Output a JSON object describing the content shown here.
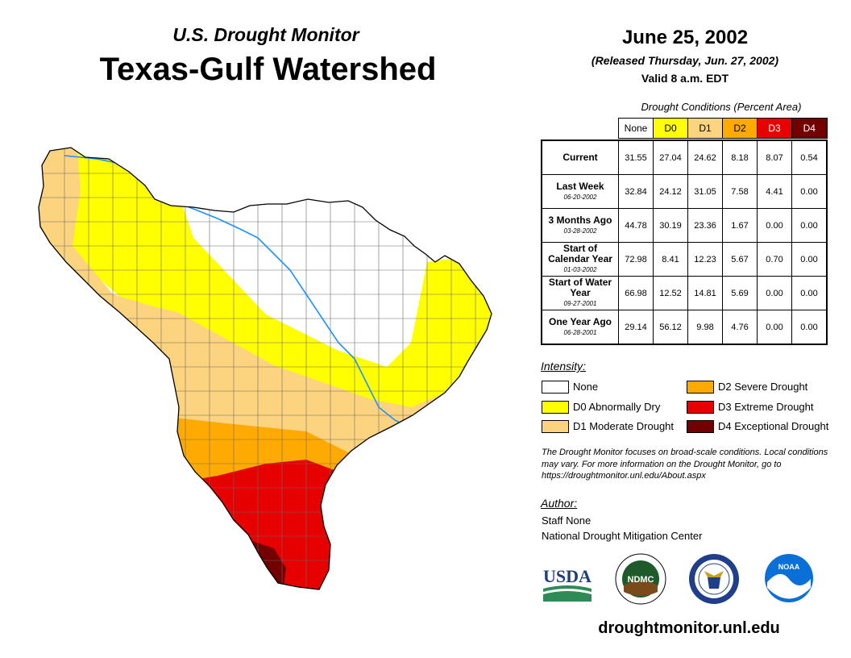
{
  "header": {
    "monitor_title": "U.S. Drought Monitor",
    "map_title": "Texas-Gulf Watershed",
    "date": "June 25, 2002",
    "released": "(Released Thursday, Jun. 27, 2002)",
    "valid": "Valid 8 a.m. EDT"
  },
  "table": {
    "caption": "Drought Conditions (Percent Area)",
    "columns": [
      {
        "label": "None",
        "color": "#ffffff",
        "text_color": "#000000"
      },
      {
        "label": "D0",
        "color": "#ffff00",
        "text_color": "#000000"
      },
      {
        "label": "D1",
        "color": "#fcd37f",
        "text_color": "#000000"
      },
      {
        "label": "D2",
        "color": "#ffaa00",
        "text_color": "#000000"
      },
      {
        "label": "D3",
        "color": "#e60000",
        "text_color": "#ffffff"
      },
      {
        "label": "D4",
        "color": "#730000",
        "text_color": "#ffffff"
      }
    ],
    "rows": [
      {
        "label": "Current",
        "sublabel": "",
        "values": [
          "31.55",
          "27.04",
          "24.62",
          "8.18",
          "8.07",
          "0.54"
        ]
      },
      {
        "label": "Last Week",
        "sublabel": "06-20-2002",
        "values": [
          "32.84",
          "24.12",
          "31.05",
          "7.58",
          "4.41",
          "0.00"
        ]
      },
      {
        "label": "3 Months Ago",
        "sublabel": "03-28-2002",
        "values": [
          "44.78",
          "30.19",
          "23.36",
          "1.67",
          "0.00",
          "0.00"
        ]
      },
      {
        "label": "Start of Calendar Year",
        "sublabel": "01-03-2002",
        "values": [
          "72.98",
          "8.41",
          "12.23",
          "5.67",
          "0.70",
          "0.00"
        ]
      },
      {
        "label": "Start of Water Year",
        "sublabel": "09-27-2001",
        "values": [
          "66.98",
          "12.52",
          "14.81",
          "5.69",
          "0.00",
          "0.00"
        ]
      },
      {
        "label": "One Year Ago",
        "sublabel": "06-28-2001",
        "values": [
          "29.14",
          "56.12",
          "9.98",
          "4.76",
          "0.00",
          "0.00"
        ]
      }
    ]
  },
  "legend": {
    "title": "Intensity:",
    "items": [
      {
        "label": "None",
        "color": "#ffffff"
      },
      {
        "label": "D0 Abnormally Dry",
        "color": "#ffff00"
      },
      {
        "label": "D1 Moderate Drought",
        "color": "#fcd37f"
      },
      {
        "label": "D2 Severe Drought",
        "color": "#ffaa00"
      },
      {
        "label": "D3 Extreme Drought",
        "color": "#e60000"
      },
      {
        "label": "D4 Exceptional Drought",
        "color": "#730000"
      }
    ]
  },
  "note": "The Drought Monitor focuses on broad-scale conditions. Local conditions may vary. For more information on the Drought Monitor, go to https://droughtmonitor.unl.edu/About.aspx",
  "author": {
    "title": "Author:",
    "name": "Staff None",
    "org": "National Drought Mitigation Center"
  },
  "logos": {
    "usda": "USDA",
    "ndmc": "NDMC",
    "noaa": "NOAA"
  },
  "site_url": "droughtmonitor.unl.edu"
}
